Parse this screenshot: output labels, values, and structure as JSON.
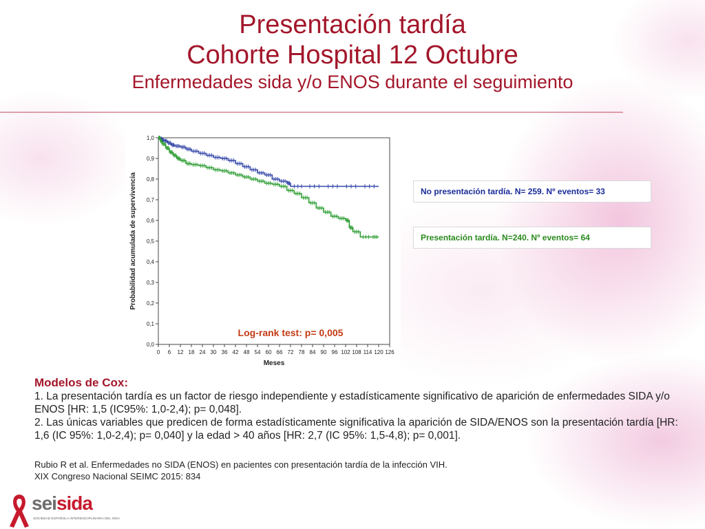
{
  "header": {
    "title_line1": "Presentación tardía",
    "title_line2": "Cohorte Hospital 12 Octubre",
    "subtitle": "Enfermedades sida y/o ENOS durante el seguimiento"
  },
  "colors": {
    "title": "#a3162a",
    "no_late_series": "#3346a8",
    "late_series": "#2e9e34",
    "logrank": "#c33a14"
  },
  "chart_data": {
    "type": "line",
    "ylabel": "Probabilidad acumulada de supervivencia",
    "xlabel": "Meses",
    "xlim": [
      0,
      126
    ],
    "ylim": [
      0,
      1
    ],
    "x_ticks": [
      0,
      6,
      12,
      18,
      24,
      30,
      36,
      42,
      48,
      54,
      60,
      66,
      72,
      78,
      84,
      90,
      96,
      102,
      108,
      114,
      120,
      126
    ],
    "y_ticks": [
      "0,0",
      "0,1",
      "0,2",
      "0,3",
      "0,4",
      "0,5",
      "0,6",
      "0,7",
      "0,8",
      "0,9",
      "1,0"
    ],
    "annotation": "Log-rank test: p= 0,005",
    "series": [
      {
        "name": "No presentación tardía. N= 259. Nº eventos= 33",
        "color": "#3346a8",
        "x": [
          0,
          1,
          2,
          3,
          5,
          7,
          9,
          12,
          15,
          18,
          22,
          26,
          30,
          34,
          38,
          42,
          46,
          50,
          54,
          58,
          62,
          66,
          70,
          72,
          80,
          90,
          100,
          110,
          120
        ],
        "y": [
          1.0,
          0.995,
          0.99,
          0.985,
          0.975,
          0.965,
          0.96,
          0.955,
          0.945,
          0.935,
          0.925,
          0.915,
          0.905,
          0.9,
          0.89,
          0.875,
          0.86,
          0.845,
          0.83,
          0.82,
          0.8,
          0.79,
          0.78,
          0.765,
          0.765,
          0.765,
          0.765,
          0.765,
          0.765
        ]
      },
      {
        "name": "Presentación tardía. N=240. Nº eventos= 64",
        "color": "#2e9e34",
        "x": [
          0,
          1,
          2,
          4,
          6,
          8,
          10,
          12,
          15,
          18,
          22,
          26,
          30,
          34,
          38,
          42,
          46,
          50,
          54,
          58,
          62,
          66,
          70,
          74,
          78,
          82,
          86,
          90,
          94,
          98,
          102,
          104,
          106,
          110,
          116,
          120
        ],
        "y": [
          1.0,
          0.985,
          0.97,
          0.95,
          0.93,
          0.915,
          0.9,
          0.89,
          0.875,
          0.87,
          0.865,
          0.855,
          0.845,
          0.84,
          0.83,
          0.82,
          0.81,
          0.8,
          0.79,
          0.78,
          0.775,
          0.765,
          0.745,
          0.73,
          0.71,
          0.685,
          0.66,
          0.64,
          0.62,
          0.61,
          0.6,
          0.565,
          0.545,
          0.52,
          0.52,
          0.52
        ]
      }
    ]
  },
  "legend": {
    "no_late": "No presentación tardía. N= 259. Nº eventos= 33",
    "late": "Presentación tardía. N=240. Nº eventos= 64"
  },
  "cox": {
    "title": "Modelos de Cox:",
    "p1": "1. La presentación tardía es un factor de riesgo independiente y estadísticamente significativo de aparición  de enfermedades SIDA y/o ENOS [HR: 1,5 (IC95%: 1,0-2,4); p= 0,048].",
    "p2": "2. Las únicas variables que predicen de forma estadísticamente significativa la aparición de SIDA/ENOS son la presentación tardía [HR: 1,6 (IC 95%: 1,0-2,4); p= 0,040] y la edad > 40 años [HR: 2,7 (IC 95%: 1,5-4,8); p= 0,001]."
  },
  "reference": {
    "line1": "Rubio R et al. Enfermedades no SIDA (ENOS) en pacientes con presentación tardía de la infección VIH.",
    "line2": "XIX Congreso Nacional SEIMC 2015: 834"
  },
  "logo": {
    "part1": "sei",
    "part2": "sida",
    "sub": "SOCIEDAD ESPAÑOLA INTERDISCIPLINARIA DEL SIDA"
  }
}
